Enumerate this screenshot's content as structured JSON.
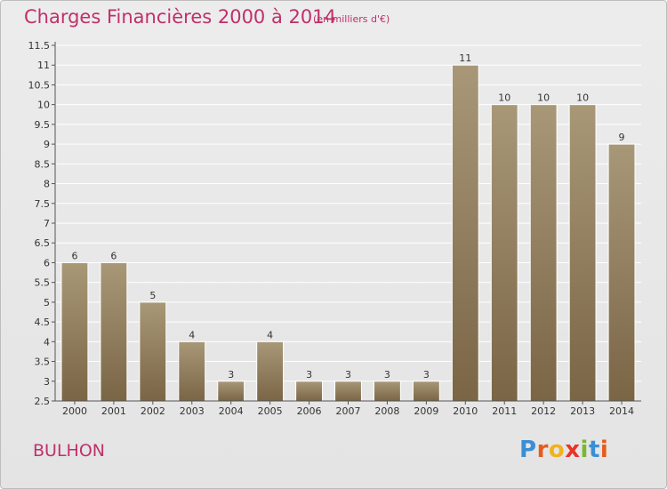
{
  "header": {
    "title": "Charges Financières 2000 à 2014",
    "subtitle": "(en milliers d'€)"
  },
  "footer": {
    "commune": "BULHON",
    "logo": {
      "letters": [
        "P",
        "r",
        "o",
        "x",
        "i",
        "t",
        "i"
      ],
      "colors": [
        "#3a8fd4",
        "#e85a1c",
        "#f2b21c",
        "#e8342a",
        "#7ab630",
        "#3a8fd4",
        "#e85a1c"
      ]
    }
  },
  "colors": {
    "title": "#c0306a",
    "bar_top": "#a89878",
    "bar_bottom": "#7a6545",
    "axis": "#555555",
    "grid": "#ffffff"
  },
  "chart_data": {
    "type": "bar",
    "categories": [
      "2000",
      "2001",
      "2002",
      "2003",
      "2004",
      "2005",
      "2006",
      "2007",
      "2008",
      "2009",
      "2010",
      "2011",
      "2012",
      "2013",
      "2014"
    ],
    "values": [
      6,
      6,
      5,
      4,
      3,
      4,
      3,
      3,
      3,
      3,
      11,
      10,
      10,
      10,
      9
    ],
    "value_labels": [
      "6",
      "6",
      "5",
      "4",
      "3",
      "4",
      "3",
      "3",
      "3",
      "3",
      "11",
      "10",
      "10",
      "10",
      "9"
    ],
    "title": "Charges Financières 2000 à 2014",
    "subtitle": "(en milliers d'€)",
    "xlabel": "",
    "ylabel": "",
    "ylim": [
      2.5,
      11.5
    ],
    "yticks": [
      2.5,
      3,
      3.5,
      4,
      4.5,
      5,
      5.5,
      6,
      6.5,
      7,
      7.5,
      8,
      8.5,
      9,
      9.5,
      10,
      10.5,
      11,
      11.5
    ],
    "ytick_labels": [
      "2.5",
      "3",
      "3.5",
      "4",
      "4.5",
      "5",
      "5.5",
      "6",
      "6.5",
      "7",
      "7.5",
      "8",
      "8.5",
      "9",
      "9.5",
      "10",
      "10.5",
      "11",
      "11.5"
    ],
    "grid": true
  }
}
